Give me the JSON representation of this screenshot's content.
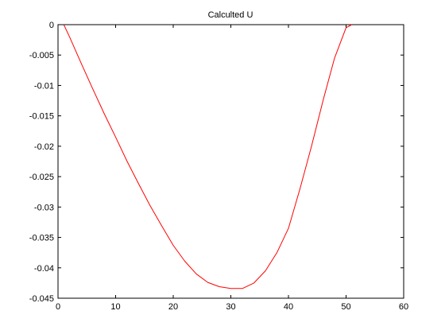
{
  "chart_data": {
    "type": "line",
    "title": "Calculted U",
    "xlabel": "",
    "ylabel": "",
    "xlim": [
      0,
      60
    ],
    "ylim": [
      -0.045,
      0
    ],
    "xticks": [
      0,
      10,
      20,
      30,
      40,
      50,
      60
    ],
    "yticks": [
      0,
      -0.005,
      -0.01,
      -0.015,
      -0.02,
      -0.025,
      -0.03,
      -0.035,
      -0.04,
      -0.045
    ],
    "xtick_labels": [
      "0",
      "10",
      "20",
      "30",
      "40",
      "50",
      "60"
    ],
    "ytick_labels": [
      "0",
      "-0.005",
      "-0.01",
      "-0.015",
      "-0.02",
      "-0.025",
      "-0.03",
      "-0.035",
      "-0.04",
      "-0.045"
    ],
    "grid": false,
    "series": [
      {
        "color": "#ff0000",
        "x": [
          1,
          2,
          4,
          6,
          8,
          10,
          12,
          14,
          16,
          18,
          20,
          22,
          24,
          26,
          28,
          30,
          32,
          34,
          36,
          38,
          40,
          42,
          44,
          46,
          48,
          50,
          51
        ],
        "y": [
          0,
          -0.002,
          -0.0063,
          -0.0105,
          -0.0146,
          -0.0185,
          -0.0225,
          -0.0262,
          -0.0298,
          -0.0331,
          -0.0363,
          -0.0389,
          -0.041,
          -0.0424,
          -0.0431,
          -0.0434,
          -0.0434,
          -0.0425,
          -0.0405,
          -0.0375,
          -0.0335,
          -0.027,
          -0.02,
          -0.0125,
          -0.0055,
          -0.0005,
          0
        ]
      }
    ]
  }
}
